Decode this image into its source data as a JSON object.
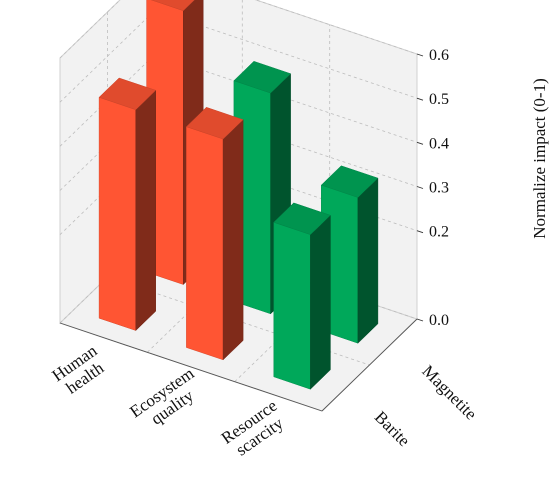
{
  "chart_data": {
    "type": "bar3d",
    "x_categories": [
      "Human health",
      "Ecosystem quality",
      "Resource scarcity"
    ],
    "y_categories": [
      "Barite",
      "Magnetite"
    ],
    "zlabel": "Normalize impact (0-1)",
    "zlim": [
      0,
      0.6
    ],
    "z_ticks": [
      "0.0",
      "0.2",
      "0.3",
      "0.4",
      "0.5",
      "0.6"
    ],
    "bars": [
      {
        "x": "Human health",
        "y": "Barite",
        "value": 0.5,
        "color": "#ff5533"
      },
      {
        "x": "Human health",
        "y": "Magnetite",
        "value": 0.62,
        "color": "#ff5533"
      },
      {
        "x": "Ecosystem quality",
        "y": "Barite",
        "value": 0.5,
        "color": "#ff5533"
      },
      {
        "x": "Ecosystem quality",
        "y": "Magnetite",
        "value": 0.5,
        "color": "#00a85a"
      },
      {
        "x": "Resource scarcity",
        "y": "Barite",
        "value": 0.35,
        "color": "#00a85a"
      },
      {
        "x": "Resource scarcity",
        "y": "Magnetite",
        "value": 0.33,
        "color": "#00a85a"
      }
    ],
    "grid": true,
    "pane_color": "#f2f2f2"
  }
}
